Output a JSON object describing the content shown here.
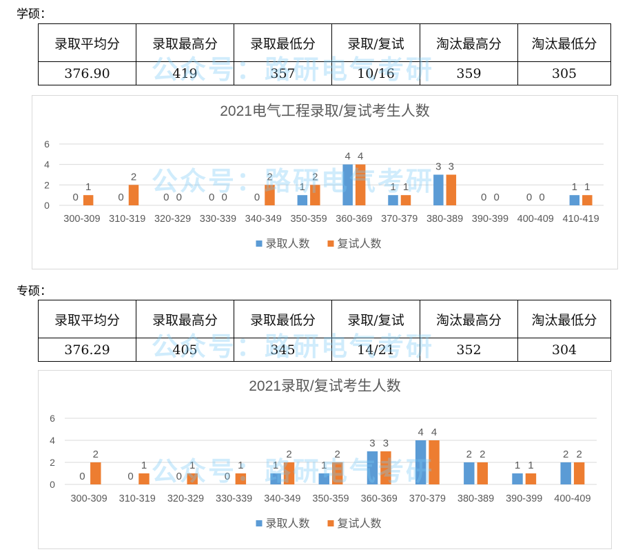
{
  "watermark": "公众号：路研电气考研",
  "colors": {
    "admitted": "#5B9BD5",
    "interviewed": "#ED7D31",
    "grid": "#d9d9d9",
    "text": "#595959"
  },
  "academic": {
    "label": "学硕：",
    "headers": [
      "录取平均分",
      "录取最高分",
      "录取最低分",
      "录取/复试",
      "淘汰最高分",
      "淘汰最低分"
    ],
    "values": [
      "376.90",
      "419",
      "357",
      "10/16",
      "359",
      "305"
    ]
  },
  "professional": {
    "label": "专硕：",
    "headers": [
      "录取平均分",
      "录取最高分",
      "录取最低分",
      "录取/复试",
      "淘汰最高分",
      "淘汰最低分"
    ],
    "values": [
      "376.29",
      "405",
      "345",
      "14/21",
      "352",
      "304"
    ]
  },
  "chart_data": [
    {
      "type": "bar",
      "title": "2021电气工程录取/复试考生人数",
      "ylim": [
        0,
        6
      ],
      "yticks": [
        "0",
        "2",
        "4",
        "6"
      ],
      "legend": "bottom",
      "categories": [
        "300-309",
        "310-319",
        "320-329",
        "330-339",
        "340-349",
        "350-359",
        "360-369",
        "370-379",
        "380-389",
        "390-399",
        "400-409",
        "410-419"
      ],
      "series": [
        {
          "name": "录取人数",
          "values": [
            0,
            0,
            0,
            0,
            0,
            1,
            4,
            1,
            3,
            0,
            0,
            1
          ]
        },
        {
          "name": "复试人数",
          "values": [
            1,
            2,
            0,
            0,
            2,
            2,
            4,
            1,
            3,
            0,
            0,
            1
          ]
        }
      ]
    },
    {
      "type": "bar",
      "title": "2021录取/复试考生人数",
      "ylim": [
        0,
        6
      ],
      "yticks": [
        "0",
        "2",
        "4",
        "6"
      ],
      "legend": "bottom",
      "categories": [
        "300-309",
        "310-319",
        "320-329",
        "330-339",
        "340-349",
        "350-359",
        "360-369",
        "370-379",
        "380-389",
        "390-399",
        "400-409"
      ],
      "series": [
        {
          "name": "录取人数",
          "values": [
            0,
            0,
            0,
            0,
            1,
            1,
            3,
            4,
            2,
            1,
            2
          ]
        },
        {
          "name": "复试人数",
          "values": [
            2,
            1,
            1,
            1,
            2,
            2,
            3,
            4,
            2,
            1,
            2
          ]
        }
      ]
    }
  ]
}
